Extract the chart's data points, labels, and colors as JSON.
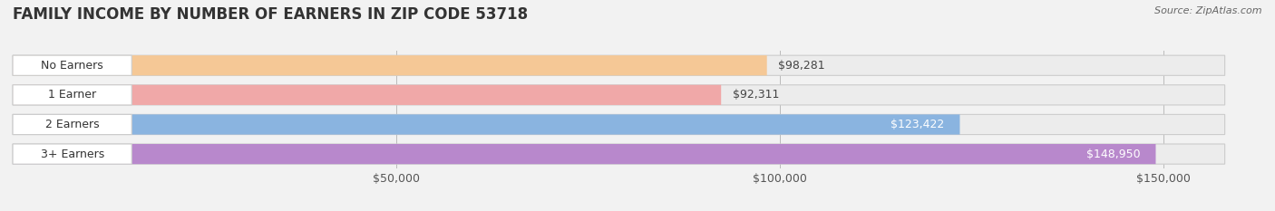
{
  "title": "FAMILY INCOME BY NUMBER OF EARNERS IN ZIP CODE 53718",
  "source": "Source: ZipAtlas.com",
  "categories": [
    "No Earners",
    "1 Earner",
    "2 Earners",
    "3+ Earners"
  ],
  "values": [
    98281,
    92311,
    123422,
    148950
  ],
  "bar_colors": [
    "#f5c896",
    "#f0a8a8",
    "#8ab4e0",
    "#b888cc"
  ],
  "label_colors": [
    "#444444",
    "#444444",
    "#ffffff",
    "#ffffff"
  ],
  "x_ticks": [
    50000,
    100000,
    150000
  ],
  "x_tick_labels": [
    "$50,000",
    "$100,000",
    "$150,000"
  ],
  "xlim_max": 162000,
  "background_color": "#f2f2f2",
  "bar_bg_color": "#e2e2e2",
  "title_fontsize": 12,
  "source_fontsize": 8,
  "label_fontsize": 9,
  "tick_fontsize": 9,
  "category_fontsize": 9
}
